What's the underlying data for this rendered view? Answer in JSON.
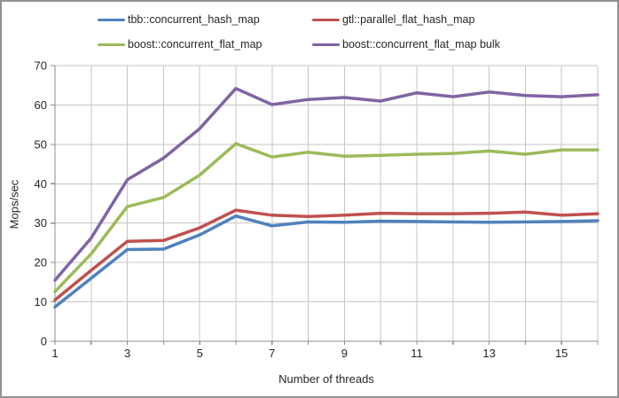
{
  "chart_data": {
    "type": "line",
    "x": [
      1,
      2,
      3,
      4,
      5,
      6,
      7,
      8,
      9,
      10,
      11,
      12,
      13,
      14,
      15,
      16
    ],
    "series": [
      {
        "name": "tbb::concurrent_hash_map",
        "color": "#4F81BD",
        "values": [
          8.7,
          16.0,
          23.3,
          23.4,
          27.0,
          31.8,
          29.3,
          30.3,
          30.2,
          30.5,
          30.4,
          30.3,
          30.2,
          30.3,
          30.4,
          30.6
        ]
      },
      {
        "name": "gtl::parallel_flat_hash_map",
        "color": "#C0504D",
        "values": [
          10.5,
          18.0,
          25.4,
          25.6,
          28.8,
          33.3,
          32.0,
          31.7,
          32.0,
          32.5,
          32.4,
          32.4,
          32.5,
          32.8,
          32.0,
          32.4
        ]
      },
      {
        "name": "boost::concurrent_flat_map",
        "color": "#9BBB59",
        "values": [
          12.6,
          22.2,
          34.2,
          36.5,
          42.2,
          50.2,
          46.8,
          48.0,
          47.0,
          47.2,
          47.5,
          47.7,
          48.3,
          47.5,
          48.6,
          48.6
        ]
      },
      {
        "name": "boost::concurrent_flat_map bulk",
        "color": "#8064A2",
        "values": [
          15.5,
          26.2,
          41.0,
          46.5,
          54.0,
          64.2,
          60.1,
          61.4,
          61.9,
          61.0,
          63.1,
          62.1,
          63.3,
          62.4,
          62.1,
          62.6
        ]
      }
    ],
    "title": "",
    "xlabel": "Number of threads",
    "ylabel": "Mops/sec",
    "xlim": [
      1,
      16
    ],
    "ylim": [
      0,
      70
    ],
    "x_tick_labels": [
      1,
      3,
      5,
      7,
      9,
      11,
      13,
      15
    ],
    "y_tick_labels": [
      0,
      10,
      20,
      30,
      40,
      50,
      60,
      70
    ],
    "grid": "both",
    "legend_position": "top",
    "colors": {
      "grid": "#C6C6C6",
      "axis": "#8C8C8C",
      "text": "#262626",
      "frame_border": "#919191",
      "background": "#FFFFFF"
    }
  }
}
